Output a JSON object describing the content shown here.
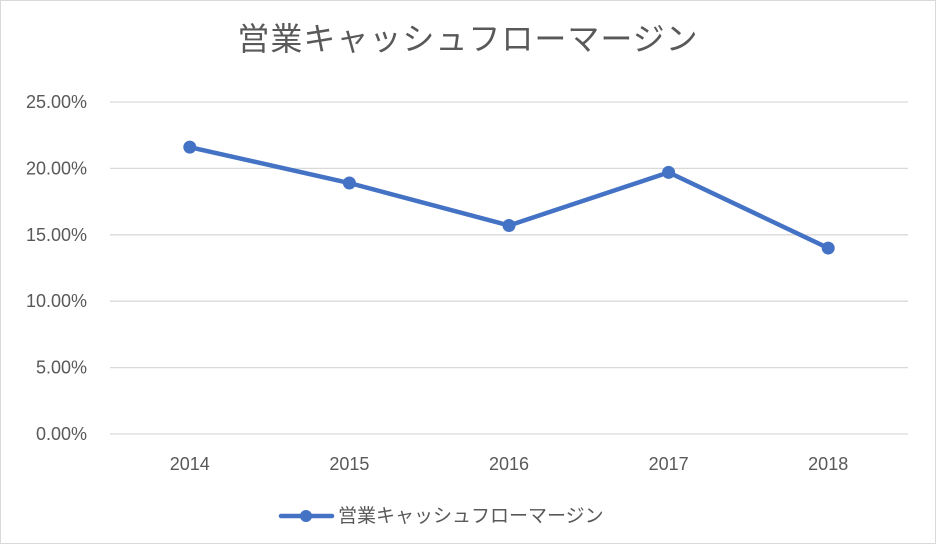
{
  "chart_data": {
    "type": "line",
    "title": "営業キャッシュフローマージン",
    "categories": [
      "2014",
      "2015",
      "2016",
      "2017",
      "2018"
    ],
    "series": [
      {
        "name": "営業キャッシュフローマージン",
        "values": [
          0.216,
          0.189,
          0.157,
          0.197,
          0.14
        ],
        "color": "#4472c4"
      }
    ],
    "y_ticks": [
      "0.00%",
      "5.00%",
      "10.00%",
      "15.00%",
      "20.00%",
      "25.00%"
    ],
    "ylim": [
      0,
      0.25
    ],
    "grid": true,
    "legend_position": "bottom"
  }
}
